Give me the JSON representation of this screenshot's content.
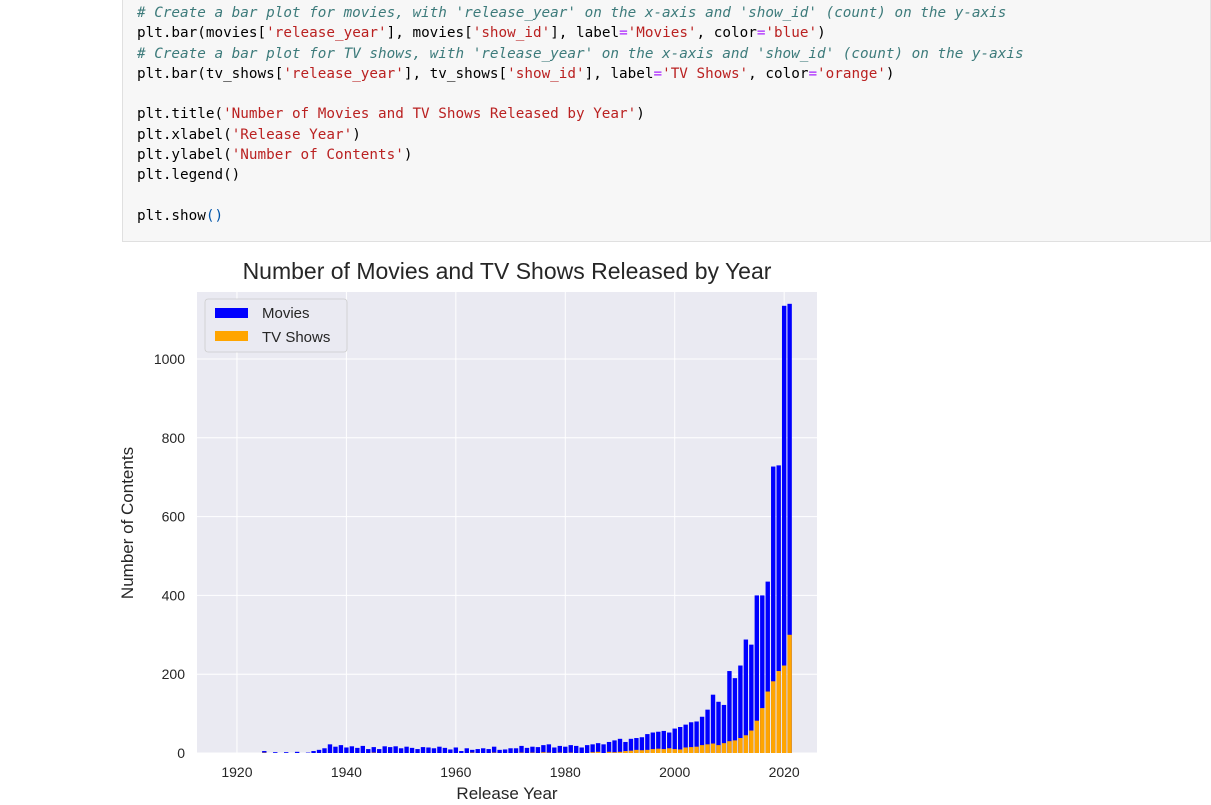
{
  "code_cell": {
    "lines": [
      [
        {
          "t": "# Create a bar plot for movies, with 'release_year' on the x-axis and 'show_id' (count) on the y-axis",
          "c": "tok-comment"
        }
      ],
      [
        {
          "t": "plt.bar(movies[",
          "c": ""
        },
        {
          "t": "'release_year'",
          "c": "tok-str"
        },
        {
          "t": "], movies[",
          "c": ""
        },
        {
          "t": "'show_id'",
          "c": "tok-str"
        },
        {
          "t": "], label",
          "c": ""
        },
        {
          "t": "=",
          "c": "tok-kw"
        },
        {
          "t": "'Movies'",
          "c": "tok-str"
        },
        {
          "t": ", color",
          "c": ""
        },
        {
          "t": "=",
          "c": "tok-kw"
        },
        {
          "t": "'blue'",
          "c": "tok-str"
        },
        {
          "t": ")",
          "c": ""
        }
      ],
      [
        {
          "t": "# Create a bar plot for TV shows, with 'release_year' on the x-axis and 'show_id' (count) on the y-axis",
          "c": "tok-comment"
        }
      ],
      [
        {
          "t": "plt.bar(tv_shows[",
          "c": ""
        },
        {
          "t": "'release_year'",
          "c": "tok-str"
        },
        {
          "t": "], tv_shows[",
          "c": ""
        },
        {
          "t": "'show_id'",
          "c": "tok-str"
        },
        {
          "t": "], label",
          "c": ""
        },
        {
          "t": "=",
          "c": "tok-kw"
        },
        {
          "t": "'TV Shows'",
          "c": "tok-str"
        },
        {
          "t": ", color",
          "c": ""
        },
        {
          "t": "=",
          "c": "tok-kw"
        },
        {
          "t": "'orange'",
          "c": "tok-str"
        },
        {
          "t": ")",
          "c": ""
        }
      ],
      [],
      [
        {
          "t": "plt.title(",
          "c": ""
        },
        {
          "t": "'Number of Movies and TV Shows Released by Year'",
          "c": "tok-str"
        },
        {
          "t": ")",
          "c": ""
        }
      ],
      [
        {
          "t": "plt.xlabel(",
          "c": ""
        },
        {
          "t": "'Release Year'",
          "c": "tok-str"
        },
        {
          "t": ")",
          "c": ""
        }
      ],
      [
        {
          "t": "plt.ylabel(",
          "c": ""
        },
        {
          "t": "'Number of Contents'",
          "c": "tok-str"
        },
        {
          "t": ")",
          "c": ""
        }
      ],
      [
        {
          "t": "plt.legend()",
          "c": ""
        }
      ],
      [],
      [
        {
          "t": "plt.show",
          "c": ""
        },
        {
          "t": "()",
          "c": "tok-paren"
        }
      ]
    ]
  },
  "colors": {
    "movies": "#0000ff",
    "tv_shows": "#ffa500",
    "plot_bg": "#eaeaf2",
    "grid": "#ffffff"
  },
  "chart_data": {
    "type": "bar",
    "title": "Number of Movies and TV Shows Released by Year",
    "xlabel": "Release Year",
    "ylabel": "Number of Contents",
    "xlim": [
      1912.7,
      2026
    ],
    "ylim": [
      0,
      1170
    ],
    "xticks": [
      1920,
      1940,
      1960,
      1980,
      2000,
      2020
    ],
    "yticks": [
      0,
      200,
      400,
      600,
      800,
      1000
    ],
    "grid": true,
    "legend": "upper left",
    "series": [
      {
        "name": "Movies",
        "color": "blue",
        "x": [
          1925,
          1927,
          1929,
          1931,
          1933,
          1934,
          1935,
          1936,
          1937,
          1938,
          1939,
          1940,
          1941,
          1942,
          1943,
          1944,
          1945,
          1946,
          1947,
          1948,
          1949,
          1950,
          1951,
          1952,
          1953,
          1954,
          1955,
          1956,
          1957,
          1958,
          1959,
          1960,
          1961,
          1962,
          1963,
          1964,
          1965,
          1966,
          1967,
          1968,
          1969,
          1970,
          1971,
          1972,
          1973,
          1974,
          1975,
          1976,
          1977,
          1978,
          1979,
          1980,
          1981,
          1982,
          1983,
          1984,
          1985,
          1986,
          1987,
          1988,
          1989,
          1990,
          1991,
          1992,
          1993,
          1994,
          1995,
          1996,
          1997,
          1998,
          1999,
          2000,
          2001,
          2002,
          2003,
          2004,
          2005,
          2006,
          2007,
          2008,
          2009,
          2010,
          2011,
          2012,
          2013,
          2014,
          2015,
          2016,
          2017,
          2018,
          2019,
          2020,
          2021
        ],
        "values": [
          5,
          2,
          2,
          3,
          1,
          5,
          8,
          12,
          22,
          16,
          20,
          14,
          17,
          13,
          18,
          10,
          15,
          10,
          17,
          15,
          17,
          12,
          16,
          13,
          10,
          15,
          14,
          12,
          16,
          13,
          9,
          14,
          5,
          12,
          8,
          10,
          12,
          10,
          16,
          8,
          9,
          12,
          12,
          18,
          13,
          16,
          15,
          20,
          22,
          14,
          18,
          16,
          20,
          18,
          14,
          20,
          22,
          25,
          22,
          28,
          32,
          36,
          28,
          36,
          38,
          40,
          48,
          52,
          54,
          56,
          52,
          62,
          66,
          72,
          78,
          80,
          92,
          110,
          148,
          130,
          122,
          208,
          190,
          222,
          288,
          275,
          400,
          400,
          435,
          727,
          730,
          1135,
          1140
        ]
      },
      {
        "name": "TV Shows",
        "color": "orange",
        "x": [
          1925,
          1945,
          1963,
          1967,
          1972,
          1974,
          1976,
          1977,
          1979,
          1981,
          1985,
          1986,
          1988,
          1989,
          1990,
          1991,
          1992,
          1993,
          1994,
          1995,
          1996,
          1997,
          1998,
          1999,
          2000,
          2001,
          2002,
          2003,
          2004,
          2005,
          2006,
          2007,
          2008,
          2009,
          2010,
          2011,
          2012,
          2013,
          2014,
          2015,
          2016,
          2017,
          2018,
          2019,
          2020,
          2021
        ],
        "values": [
          1,
          1,
          1,
          1,
          1,
          1,
          2,
          1,
          1,
          1,
          2,
          3,
          3,
          2,
          3,
          5,
          6,
          8,
          7,
          8,
          10,
          11,
          10,
          12,
          10,
          9,
          14,
          15,
          16,
          20,
          22,
          24,
          20,
          25,
          30,
          32,
          38,
          45,
          57,
          82,
          114,
          156,
          182,
          208,
          222,
          300
        ]
      }
    ]
  }
}
